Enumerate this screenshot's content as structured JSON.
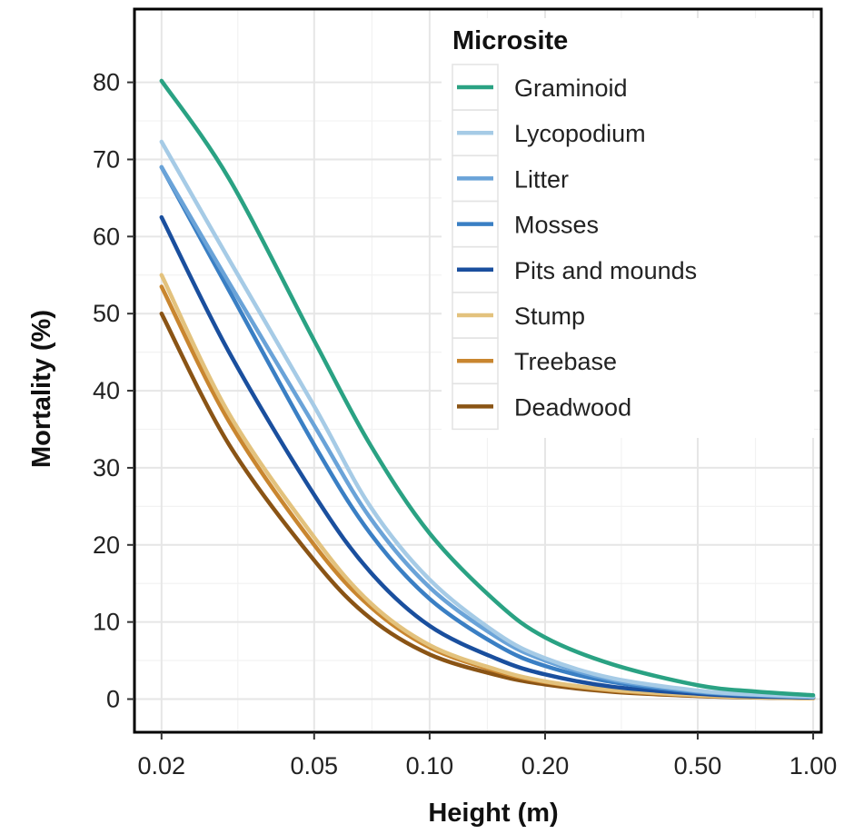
{
  "chart_data": {
    "type": "line",
    "xlabel": "Height (m)",
    "ylabel": "Mortality (%)",
    "x_scale": "log",
    "xlim": [
      0.017,
      1.05
    ],
    "ylim": [
      -4.3,
      89.5
    ],
    "x_ticks": [
      0.02,
      0.05,
      0.1,
      0.2,
      0.5,
      1.0
    ],
    "x_tick_labels": [
      "0.02",
      "0.05",
      "0.10",
      "0.20",
      "0.50",
      "1.00"
    ],
    "y_ticks": [
      0,
      10,
      20,
      30,
      40,
      50,
      60,
      70,
      80
    ],
    "y_tick_labels": [
      "0",
      "10",
      "20",
      "30",
      "40",
      "50",
      "60",
      "70",
      "80"
    ],
    "grid": true,
    "legend": {
      "title": "Microsite",
      "placement": "top-right"
    },
    "x": [
      0.02,
      0.03,
      0.05,
      0.07,
      0.1,
      0.15,
      0.2,
      0.3,
      0.5,
      0.7,
      1.0
    ],
    "series": [
      {
        "name": "Graminoid",
        "color": "#2aa283",
        "values": [
          80.2,
          67.5,
          46.5,
          33.0,
          21.5,
          12.5,
          8.0,
          4.5,
          1.8,
          1.0,
          0.5
        ]
      },
      {
        "name": "Lycopodium",
        "color": "#a6cbe6",
        "values": [
          72.3,
          57.0,
          38.0,
          25.0,
          15.5,
          8.5,
          5.3,
          2.7,
          1.1,
          0.6,
          0.3
        ]
      },
      {
        "name": "Litter",
        "color": "#6aa3d8",
        "values": [
          69.0,
          54.0,
          35.5,
          23.5,
          14.5,
          8.0,
          5.0,
          2.5,
          1.0,
          0.55,
          0.3
        ]
      },
      {
        "name": "Mosses",
        "color": "#3a7fc4",
        "values": [
          69.0,
          53.0,
          33.0,
          21.5,
          13.0,
          7.0,
          4.3,
          2.2,
          0.9,
          0.5,
          0.25
        ]
      },
      {
        "name": "Pits and mounds",
        "color": "#1a4f9e",
        "values": [
          62.5,
          45.0,
          26.5,
          16.5,
          9.5,
          5.2,
          3.2,
          1.6,
          0.7,
          0.35,
          0.2
        ]
      },
      {
        "name": "Stump",
        "color": "#e3c27d",
        "values": [
          55.0,
          37.0,
          21.0,
          12.5,
          7.0,
          3.8,
          2.3,
          1.2,
          0.5,
          0.25,
          0.1
        ]
      },
      {
        "name": "Treebase",
        "color": "#c9862f",
        "values": [
          53.5,
          36.0,
          20.0,
          12.0,
          6.7,
          3.6,
          2.2,
          1.1,
          0.45,
          0.25,
          0.1
        ]
      },
      {
        "name": "Deadwood",
        "color": "#8a5415",
        "values": [
          50.0,
          33.0,
          18.0,
          10.5,
          5.8,
          3.1,
          1.9,
          0.95,
          0.4,
          0.2,
          0.1
        ]
      }
    ]
  }
}
